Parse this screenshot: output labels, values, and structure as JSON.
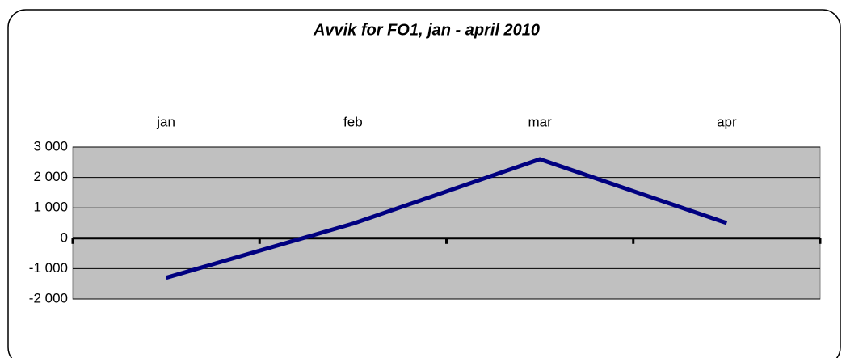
{
  "chart_data": {
    "type": "line",
    "title": "Avvik for FO1, jan - april 2010",
    "categories": [
      "jan",
      "feb",
      "mar",
      "apr"
    ],
    "series": [
      {
        "name": "FO1",
        "color": "#000080",
        "values": [
          -1300,
          480,
          2600,
          500
        ]
      }
    ],
    "ylim": [
      -2000,
      3000
    ],
    "yticks": [
      {
        "value": -2000,
        "label": "-2 000"
      },
      {
        "value": -1000,
        "label": "-1 000"
      },
      0,
      {
        "value": 1000,
        "label": "1 000"
      },
      {
        "value": 2000,
        "label": "2 000"
      },
      {
        "value": 3000,
        "label": "3 000"
      }
    ],
    "grid": true
  }
}
